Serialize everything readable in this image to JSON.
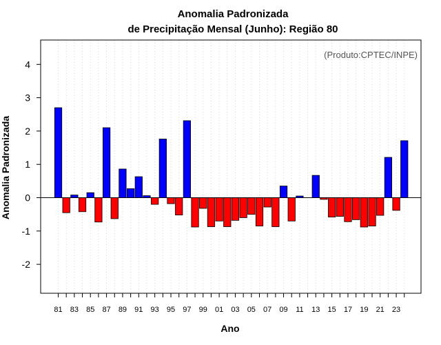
{
  "chart_data": {
    "type": "bar",
    "title": [
      "Anomalia Padronizada",
      "de Precipitação Mensal (Junho): Região 80"
    ],
    "xlabel": "Ano",
    "ylabel": "Anomalia Padronizada",
    "credit": "(Produto:CPTEC/INPE)",
    "ylim": [
      -2.9,
      4.7
    ],
    "yticks": [
      -2,
      -1,
      0,
      1,
      2,
      3,
      4
    ],
    "grid": "vertical-dotted",
    "colors": {
      "positive": "#0000ff",
      "negative": "#ff0000",
      "frame": "#000000",
      "grid": "#d3d3d3"
    },
    "categories": [
      "81",
      "82",
      "83",
      "84",
      "85",
      "86",
      "87",
      "88",
      "89",
      "90",
      "91",
      "92",
      "93",
      "94",
      "95",
      "96",
      "97",
      "98",
      "99",
      "00",
      "01",
      "02",
      "03",
      "04",
      "05",
      "06",
      "07",
      "08",
      "09",
      "10",
      "11",
      "12",
      "13",
      "14",
      "15",
      "16",
      "17",
      "18",
      "19",
      "20",
      "21",
      "22",
      "23",
      "24"
    ],
    "xtick_labels": [
      "81",
      "83",
      "85",
      "87",
      "89",
      "91",
      "93",
      "95",
      "97",
      "99",
      "01",
      "03",
      "05",
      "07",
      "09",
      "11",
      "13",
      "15",
      "17",
      "19",
      "21",
      "23"
    ],
    "values": [
      2.7,
      -0.45,
      0.08,
      -0.42,
      0.15,
      -0.73,
      2.1,
      -0.63,
      0.86,
      0.27,
      0.63,
      0.06,
      -0.2,
      1.76,
      -0.18,
      -0.52,
      2.31,
      -0.88,
      -0.32,
      -0.87,
      -0.7,
      -0.87,
      -0.68,
      -0.6,
      -0.5,
      -0.85,
      -0.28,
      -0.87,
      0.35,
      -0.7,
      0.05,
      0.0,
      0.67,
      -0.05,
      -0.58,
      -0.56,
      -0.72,
      -0.66,
      -0.88,
      -0.85,
      -0.53,
      1.21,
      -0.38,
      1.71
    ]
  }
}
